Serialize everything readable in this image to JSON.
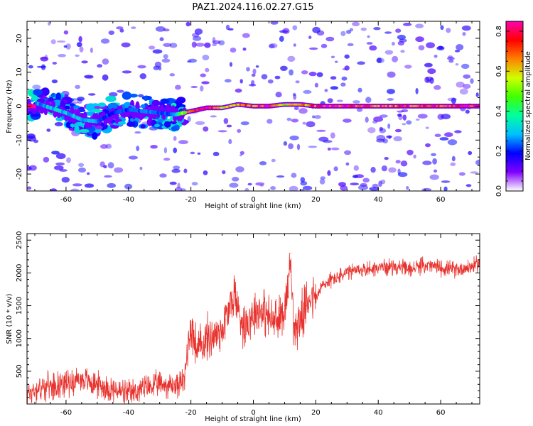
{
  "figure": {
    "title": "PAZ1.2024.116.02.27.G15"
  },
  "chart_data": [
    {
      "type": "heatmap",
      "xlabel": "Height of straight line (km)",
      "ylabel": "Frequency (Hz)",
      "xlim": [
        -72.5,
        72.5
      ],
      "ylim": [
        -25,
        25
      ],
      "x_ticks": [
        -60,
        -40,
        -20,
        0,
        20,
        40,
        60
      ],
      "y_ticks": [
        -20,
        -10,
        0,
        10,
        20
      ],
      "grid": false,
      "colorbar": {
        "label": "Normalized spectral amplitude",
        "range": [
          0.0,
          0.85
        ],
        "ticks": [
          0.0,
          0.2,
          0.4,
          0.6,
          0.8
        ],
        "colormap": [
          "#ffffff",
          "#8000ff",
          "#0000ff",
          "#00c0ff",
          "#00ffa0",
          "#40ff00",
          "#d0ff00",
          "#ff8000",
          "#ff0000",
          "#ff00b0"
        ]
      },
      "ridge": [
        {
          "x": -70,
          "freq": 1.0,
          "amp": 0.25
        },
        {
          "x": -65,
          "freq": -0.5,
          "amp": 0.3
        },
        {
          "x": -60,
          "freq": -2.0,
          "amp": 0.3
        },
        {
          "x": -55,
          "freq": -4.0,
          "amp": 0.28
        },
        {
          "x": -50,
          "freq": -4.5,
          "amp": 0.25
        },
        {
          "x": -45,
          "freq": -2.0,
          "amp": 0.2
        },
        {
          "x": -40,
          "freq": -1.0,
          "amp": 0.22
        },
        {
          "x": -35,
          "freq": -1.5,
          "amp": 0.25
        },
        {
          "x": -30,
          "freq": -2.0,
          "amp": 0.22
        },
        {
          "x": -25,
          "freq": -2.5,
          "amp": 0.25
        },
        {
          "x": -20,
          "freq": -1.5,
          "amp": 0.75
        },
        {
          "x": -15,
          "freq": -0.5,
          "amp": 0.75
        },
        {
          "x": -10,
          "freq": -0.5,
          "amp": 0.6
        },
        {
          "x": -5,
          "freq": 0.5,
          "amp": 0.65
        },
        {
          "x": 0,
          "freq": 0.0,
          "amp": 0.7
        },
        {
          "x": 5,
          "freq": 0.0,
          "amp": 0.8
        },
        {
          "x": 10,
          "freq": 0.5,
          "amp": 0.55
        },
        {
          "x": 15,
          "freq": 0.5,
          "amp": 0.6
        },
        {
          "x": 20,
          "freq": 0.0,
          "amp": 0.75
        },
        {
          "x": 30,
          "freq": 0.0,
          "amp": 0.78
        },
        {
          "x": 40,
          "freq": 0.0,
          "amp": 0.72
        },
        {
          "x": 50,
          "freq": 0.0,
          "amp": 0.72
        },
        {
          "x": 60,
          "freq": 0.0,
          "amp": 0.75
        },
        {
          "x": 72,
          "freq": 0.0,
          "amp": 0.78
        }
      ]
    },
    {
      "type": "line",
      "xlabel": "Height of straight line (km)",
      "ylabel": "SNR (10 * v/v)",
      "xlim": [
        -72.5,
        72.5
      ],
      "ylim": [
        0,
        2600
      ],
      "x_ticks": [
        -60,
        -40,
        -20,
        0,
        20,
        40,
        60
      ],
      "y_ticks": [
        500,
        1000,
        1500,
        2000,
        2500
      ],
      "grid": false,
      "color": "#e8322d",
      "x": [
        -72.5,
        -70,
        -65,
        -60,
        -55,
        -50,
        -45,
        -40,
        -35,
        -30,
        -25,
        -22,
        -21,
        -20,
        -18,
        -15,
        -12,
        -10,
        -8,
        -6,
        -5,
        -3,
        0,
        3,
        5,
        8,
        10,
        11,
        12,
        13,
        15,
        17,
        18,
        20,
        22,
        25,
        28,
        30,
        35,
        40,
        45,
        50,
        55,
        60,
        65,
        70,
        72.5
      ],
      "y": [
        150,
        220,
        280,
        320,
        380,
        300,
        220,
        150,
        240,
        300,
        280,
        350,
        900,
        1200,
        800,
        1000,
        1050,
        1150,
        1400,
        1700,
        1450,
        1200,
        1400,
        1450,
        1300,
        1250,
        1500,
        1700,
        2300,
        1100,
        1300,
        1500,
        1650,
        1600,
        1800,
        1900,
        1950,
        2000,
        2050,
        2080,
        2100,
        2050,
        2120,
        2080,
        2050,
        2100,
        2150
      ]
    }
  ]
}
